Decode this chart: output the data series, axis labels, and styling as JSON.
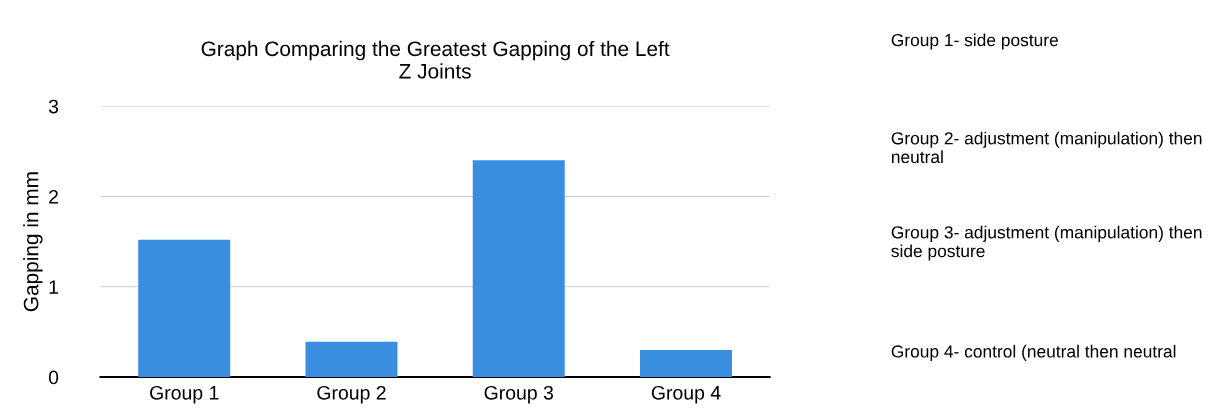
{
  "chart_data": {
    "type": "bar",
    "title": "Graph Comparing the Greatest Gapping of the Left\nZ Joints",
    "ylabel": "Gapping in mm",
    "categories": [
      "Group 1",
      "Group 2",
      "Group 3",
      "Group 4"
    ],
    "values": [
      1.52,
      0.39,
      2.4,
      0.3
    ],
    "color": "#3a8ee0",
    "ylim": [
      0,
      3
    ],
    "yticks": [
      0,
      1,
      2,
      3
    ],
    "grid": "y",
    "annotations": [
      "Group 1- side posture",
      "Group 2- adjustment (manipulation) then neutral",
      "Group 3- adjustment (manipulation) then side posture",
      "Group 4- control (neutral then neutral"
    ]
  }
}
